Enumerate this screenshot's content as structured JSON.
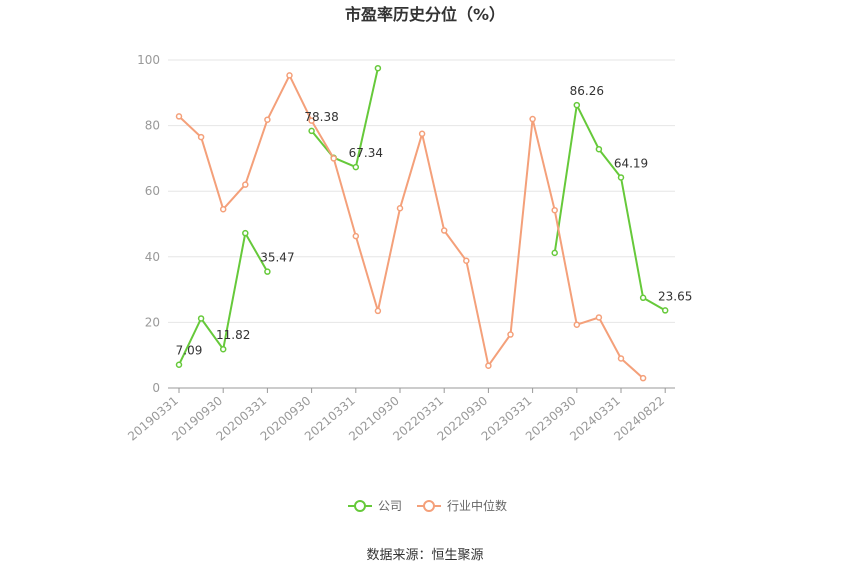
{
  "chart_data": {
    "type": "line",
    "title": "市盈率历史分位（%）",
    "xlabel": "",
    "ylabel": "",
    "ylim": [
      0,
      100
    ],
    "yticks": [
      0,
      20,
      40,
      60,
      80,
      100
    ],
    "x_tick_labels": [
      "20190331",
      "20190930",
      "20200331",
      "20200930",
      "20210331",
      "20210930",
      "20220331",
      "20220930",
      "20230331",
      "20230930",
      "20240331",
      "20240822"
    ],
    "legend_position": "bottom",
    "grid": true,
    "series": [
      {
        "name": "公司",
        "color": "#66c93a",
        "points": [
          {
            "i": 0,
            "y": 7.09,
            "label": "7.09"
          },
          {
            "i": 1,
            "y": 21.2
          },
          {
            "i": 2,
            "y": 11.82,
            "label": "11.82"
          },
          {
            "i": 3,
            "y": 47.2
          },
          {
            "i": 4,
            "y": 35.47,
            "label": "35.47"
          },
          {
            "i": 6,
            "y": 78.38,
            "label": "78.38"
          },
          {
            "i": 7,
            "y": 70.2
          },
          {
            "i": 8,
            "y": 67.34,
            "label": "67.34"
          },
          {
            "i": 9,
            "y": 97.5
          },
          {
            "i": 17,
            "y": 41.2
          },
          {
            "i": 18,
            "y": 86.26,
            "label": "86.26"
          },
          {
            "i": 19,
            "y": 72.8
          },
          {
            "i": 20,
            "y": 64.19,
            "label": "64.19"
          },
          {
            "i": 21,
            "y": 27.5
          },
          {
            "i": 22,
            "y": 23.65,
            "label": "23.65"
          }
        ]
      },
      {
        "name": "行业中位数",
        "color": "#f4a07a",
        "points": [
          {
            "i": 0,
            "y": 82.8
          },
          {
            "i": 1,
            "y": 76.5
          },
          {
            "i": 2,
            "y": 54.5
          },
          {
            "i": 3,
            "y": 62.0
          },
          {
            "i": 4,
            "y": 81.8
          },
          {
            "i": 5,
            "y": 95.3
          },
          {
            "i": 6,
            "y": 81.5
          },
          {
            "i": 7,
            "y": 70.0
          },
          {
            "i": 8,
            "y": 46.3
          },
          {
            "i": 9,
            "y": 23.5
          },
          {
            "i": 10,
            "y": 54.8
          },
          {
            "i": 11,
            "y": 77.5
          },
          {
            "i": 12,
            "y": 48.0
          },
          {
            "i": 13,
            "y": 38.8
          },
          {
            "i": 14,
            "y": 6.8
          },
          {
            "i": 15,
            "y": 16.3
          },
          {
            "i": 16,
            "y": 82.0
          },
          {
            "i": 17,
            "y": 54.2
          },
          {
            "i": 18,
            "y": 19.3
          },
          {
            "i": 19,
            "y": 21.5
          },
          {
            "i": 20,
            "y": 9.0
          },
          {
            "i": 21,
            "y": 3.0
          }
        ]
      }
    ]
  },
  "footer": {
    "source": "数据来源：恒生聚源"
  }
}
